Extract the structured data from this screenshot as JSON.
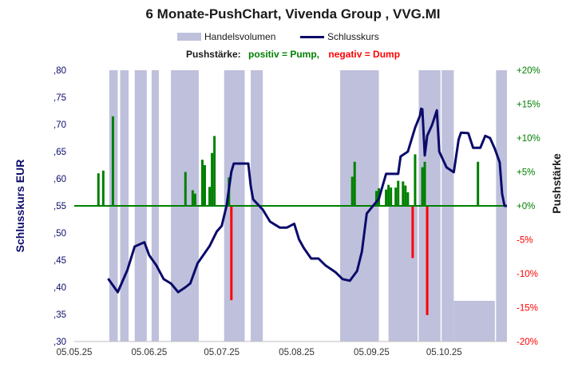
{
  "chart_data": {
    "type": "line",
    "title": "6 Monate-PushChart,  Vivenda Group , VVG.MI",
    "legend": [
      "Handelsvolumen",
      "Schlusskurs"
    ],
    "subtitle": {
      "label": "Pushstärke:",
      "positive": "positiv = Pump,",
      "negative": "negativ = Dump"
    },
    "ylabel_left": "Schlusskurs EUR",
    "ylabel_right": "Pushstärke",
    "x_unit": "days since 05.05.25",
    "xlim": [
      0,
      179
    ],
    "x_ticks": [
      {
        "day": 0,
        "label": "05.05.25"
      },
      {
        "day": 31,
        "label": "05.06.25"
      },
      {
        "day": 61,
        "label": "05.07.25"
      },
      {
        "day": 92,
        "label": "05.08.25"
      },
      {
        "day": 123,
        "label": "05.09.25"
      },
      {
        "day": 153,
        "label": "05.10.25"
      }
    ],
    "ylim_left": [
      0.3,
      0.8
    ],
    "y_ticks_left": [
      ",30",
      ",35",
      ",40",
      ",45",
      ",50",
      ",55",
      ",60",
      ",65",
      ",70",
      ",75",
      ",80"
    ],
    "ylim_right": [
      -20,
      20
    ],
    "y_ticks_right": [
      "-20%",
      "-15%",
      "-10%",
      "-5%",
      "+0%",
      "+5%",
      "+10%",
      "+15%",
      "+20%"
    ],
    "series": [
      {
        "name": "Schlusskurs",
        "color": "#0b0b6b",
        "points": [
          [
            14,
            0.416
          ],
          [
            18,
            0.391
          ],
          [
            22,
            0.432
          ],
          [
            25,
            0.475
          ],
          [
            29,
            0.483
          ],
          [
            31,
            0.459
          ],
          [
            34,
            0.44
          ],
          [
            37,
            0.415
          ],
          [
            40,
            0.407
          ],
          [
            43,
            0.391
          ],
          [
            46,
            0.4
          ],
          [
            48,
            0.407
          ],
          [
            51,
            0.444
          ],
          [
            56,
            0.476
          ],
          [
            59,
            0.503
          ],
          [
            61,
            0.513
          ],
          [
            63,
            0.55
          ],
          [
            65,
            0.613
          ],
          [
            66,
            0.628
          ],
          [
            72,
            0.628
          ],
          [
            73,
            0.587
          ],
          [
            74,
            0.562
          ],
          [
            78,
            0.543
          ],
          [
            81,
            0.521
          ],
          [
            85,
            0.51
          ],
          [
            88,
            0.51
          ],
          [
            91,
            0.517
          ],
          [
            93,
            0.488
          ],
          [
            95,
            0.472
          ],
          [
            98,
            0.453
          ],
          [
            101,
            0.453
          ],
          [
            104,
            0.44
          ],
          [
            108,
            0.428
          ],
          [
            111,
            0.415
          ],
          [
            114,
            0.412
          ],
          [
            117,
            0.43
          ],
          [
            119,
            0.466
          ],
          [
            121,
            0.536
          ],
          [
            126,
            0.563
          ],
          [
            129,
            0.609
          ],
          [
            134,
            0.609
          ],
          [
            135,
            0.641
          ],
          [
            138,
            0.65
          ],
          [
            141,
            0.694
          ],
          [
            143,
            0.716
          ],
          [
            143.5,
            0.729
          ],
          [
            144,
            0.728
          ],
          [
            145,
            0.643
          ],
          [
            146,
            0.679
          ],
          [
            148,
            0.699
          ],
          [
            150,
            0.726
          ],
          [
            151,
            0.65
          ],
          [
            154,
            0.621
          ],
          [
            157,
            0.612
          ],
          [
            159,
            0.672
          ],
          [
            160,
            0.685
          ],
          [
            163,
            0.684
          ],
          [
            165,
            0.657
          ],
          [
            168,
            0.657
          ],
          [
            170,
            0.679
          ],
          [
            172,
            0.675
          ],
          [
            174,
            0.655
          ],
          [
            176,
            0.63
          ],
          [
            177,
            0.572
          ],
          [
            178,
            0.55
          ],
          [
            179,
            0.55
          ]
        ]
      },
      {
        "name": "Handelsvolumen",
        "color": "#bfc0dc",
        "unit": "fraction of axis height",
        "bands": [
          [
            14.5,
            18,
            1
          ],
          [
            19,
            22.5,
            1
          ],
          [
            25,
            30,
            1
          ],
          [
            32,
            35,
            1
          ],
          [
            40,
            51.5,
            1
          ],
          [
            62,
            70.5,
            1
          ],
          [
            73,
            78,
            1
          ],
          [
            110,
            126,
            1
          ],
          [
            130,
            142,
            0.5
          ],
          [
            142.5,
            151.5,
            1
          ],
          [
            152,
            157,
            1
          ],
          [
            157,
            174,
            0.15
          ],
          [
            174.5,
            179,
            1
          ]
        ]
      },
      {
        "name": "Pushstärke",
        "unit": "%",
        "pos_color": "#008000",
        "neg_color": "#ff0000",
        "bars": [
          [
            10,
            4.8
          ],
          [
            12,
            5.2
          ],
          [
            16,
            13.2
          ],
          [
            46,
            5
          ],
          [
            49,
            2.3
          ],
          [
            50,
            1.8
          ],
          [
            53,
            6.8
          ],
          [
            54,
            6.0
          ],
          [
            56,
            2.8
          ],
          [
            57,
            7.8
          ],
          [
            58,
            10.3
          ],
          [
            64,
            4.2
          ],
          [
            65,
            -13.9
          ],
          [
            115,
            4.3
          ],
          [
            116,
            6.5
          ],
          [
            125,
            2.2
          ],
          [
            126,
            2.6
          ],
          [
            129,
            2.4
          ],
          [
            130,
            3.1
          ],
          [
            131,
            2.7
          ],
          [
            133,
            2.7
          ],
          [
            134,
            3.7
          ],
          [
            136,
            3.6
          ],
          [
            137,
            3.0
          ],
          [
            138,
            2.0
          ],
          [
            140,
            -7.7
          ],
          [
            141,
            7.6
          ],
          [
            144,
            5.7
          ],
          [
            145,
            6.5
          ],
          [
            146,
            -16.1
          ],
          [
            167,
            6.5
          ]
        ]
      }
    ]
  }
}
